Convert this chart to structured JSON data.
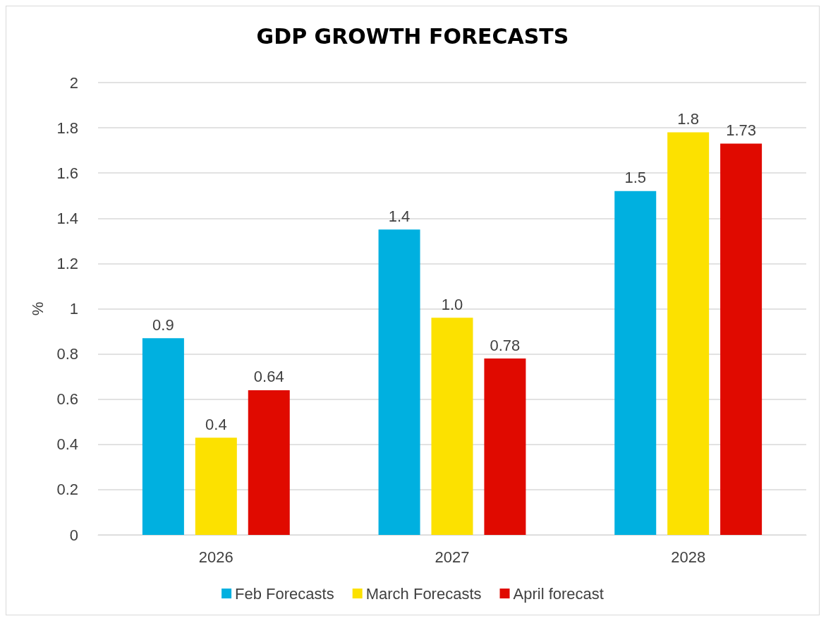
{
  "chart_data": {
    "type": "bar",
    "title": "GDP GROWTH FORECASTS",
    "ylabel": "%",
    "categories": [
      "2026",
      "2027",
      "2028"
    ],
    "series": [
      {
        "name": "Feb Forecasts",
        "color": "#00b0e0",
        "values": [
          0.87,
          1.35,
          1.52
        ],
        "value_labels": [
          "0.9",
          "1.4",
          "1.5"
        ]
      },
      {
        "name": "March Forecasts",
        "color": "#fce100",
        "values": [
          0.43,
          0.96,
          1.78
        ],
        "value_labels": [
          "0.4",
          "1.0",
          "1.8"
        ]
      },
      {
        "name": "April forecast",
        "color": "#e00a00",
        "values": [
          0.64,
          0.78,
          1.73
        ],
        "value_labels": [
          "0.64",
          "0.78",
          "1.73"
        ]
      }
    ],
    "ylim": [
      0,
      2
    ],
    "yticks": [
      0,
      0.2,
      0.4,
      0.6,
      0.8,
      1,
      1.2,
      1.4,
      1.6,
      1.8,
      2
    ],
    "grid": "y",
    "legend": "bottom"
  }
}
